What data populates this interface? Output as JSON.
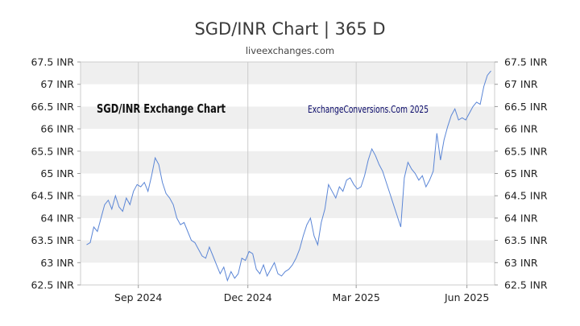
{
  "title": "SGD/INR Chart | 365 D",
  "subtitle": "liveexchanges.com",
  "chart_data": {
    "type": "line",
    "inner_label": "SGD/INR Exchange Chart",
    "watermark": "ExchangeConversions.Com 2025",
    "line_color": "#5b86d6",
    "band_color": "#efefef",
    "grid": true,
    "ylim": [
      62.5,
      67.5
    ],
    "y_ticks": [
      "67.5 INR",
      "67 INR",
      "66.5 INR",
      "66 INR",
      "65.5 INR",
      "65 INR",
      "64.5 INR",
      "64 INR",
      "63.5 INR",
      "63 INR",
      "62.5 INR"
    ],
    "y_tick_values": [
      67.5,
      67,
      66.5,
      66,
      65.5,
      65,
      64.5,
      64,
      63.5,
      63,
      62.5
    ],
    "x_ticks": [
      "Sep 2024",
      "Dec 2024",
      "Mar 2025",
      "Jun 2025"
    ],
    "x_tick_dates": [
      "2024-09-01",
      "2024-12-01",
      "2025-03-01",
      "2025-06-01"
    ],
    "xlim": [
      "2024-07-15",
      "2025-06-24"
    ],
    "series": [
      {
        "x": [
          "2024-07-20",
          "2024-07-23",
          "2024-07-26",
          "2024-07-29",
          "2024-08-01",
          "2024-08-04",
          "2024-08-07",
          "2024-08-10",
          "2024-08-13",
          "2024-08-16",
          "2024-08-19",
          "2024-08-22",
          "2024-08-25",
          "2024-08-28",
          "2024-08-31",
          "2024-09-03",
          "2024-09-06",
          "2024-09-09",
          "2024-09-12",
          "2024-09-15",
          "2024-09-18",
          "2024-09-21",
          "2024-09-24",
          "2024-09-27",
          "2024-09-30",
          "2024-10-03",
          "2024-10-06",
          "2024-10-09",
          "2024-10-12",
          "2024-10-15",
          "2024-10-18",
          "2024-10-21",
          "2024-10-24",
          "2024-10-27",
          "2024-10-30",
          "2024-11-02",
          "2024-11-05",
          "2024-11-08",
          "2024-11-11",
          "2024-11-14",
          "2024-11-17",
          "2024-11-20",
          "2024-11-23",
          "2024-11-26",
          "2024-11-29",
          "2024-12-02",
          "2024-12-05",
          "2024-12-08",
          "2024-12-11",
          "2024-12-14",
          "2024-12-17",
          "2024-12-20",
          "2024-12-23",
          "2024-12-26",
          "2024-12-29",
          "2025-01-01",
          "2025-01-04",
          "2025-01-07",
          "2025-01-10",
          "2025-01-13",
          "2025-01-16",
          "2025-01-19",
          "2025-01-22",
          "2025-01-25",
          "2025-01-28",
          "2025-01-31",
          "2025-02-03",
          "2025-02-06",
          "2025-02-09",
          "2025-02-12",
          "2025-02-15",
          "2025-02-18",
          "2025-02-21",
          "2025-02-24",
          "2025-02-27",
          "2025-03-02",
          "2025-03-05",
          "2025-03-08",
          "2025-03-11",
          "2025-03-14",
          "2025-03-17",
          "2025-03-20",
          "2025-03-23",
          "2025-03-26",
          "2025-03-29",
          "2025-04-01",
          "2025-04-04",
          "2025-04-07",
          "2025-04-10",
          "2025-04-13",
          "2025-04-16",
          "2025-04-19",
          "2025-04-22",
          "2025-04-25",
          "2025-04-28",
          "2025-05-01",
          "2025-05-04",
          "2025-05-07",
          "2025-05-10",
          "2025-05-13",
          "2025-05-16",
          "2025-05-19",
          "2025-05-22",
          "2025-05-25",
          "2025-05-28",
          "2025-05-31",
          "2025-06-03",
          "2025-06-06",
          "2025-06-09",
          "2025-06-12",
          "2025-06-15",
          "2025-06-18",
          "2025-06-21"
        ],
        "values": [
          63.4,
          63.45,
          63.8,
          63.7,
          64.0,
          64.3,
          64.4,
          64.2,
          64.5,
          64.25,
          64.15,
          64.45,
          64.3,
          64.6,
          64.75,
          64.7,
          64.8,
          64.6,
          64.95,
          65.35,
          65.2,
          64.8,
          64.55,
          64.45,
          64.3,
          64.0,
          63.85,
          63.9,
          63.7,
          63.5,
          63.45,
          63.3,
          63.15,
          63.1,
          63.35,
          63.15,
          62.95,
          62.75,
          62.9,
          62.6,
          62.8,
          62.65,
          62.75,
          63.1,
          63.05,
          63.25,
          63.2,
          62.85,
          62.75,
          62.95,
          62.7,
          62.85,
          63.0,
          62.75,
          62.7,
          62.8,
          62.85,
          62.95,
          63.1,
          63.3,
          63.6,
          63.85,
          64.0,
          63.6,
          63.4,
          63.9,
          64.2,
          64.75,
          64.6,
          64.45,
          64.7,
          64.6,
          64.85,
          64.9,
          64.75,
          64.65,
          64.7,
          64.95,
          65.3,
          65.55,
          65.4,
          65.2,
          65.05,
          64.8,
          64.55,
          64.3,
          64.05,
          63.8,
          64.9,
          65.25,
          65.1,
          65.0,
          64.85,
          64.95,
          64.7,
          64.85,
          65.05,
          65.9,
          65.3,
          65.75,
          66.05,
          66.3,
          66.45,
          66.2,
          66.25,
          66.2,
          66.35,
          66.5,
          66.6,
          66.55,
          66.95,
          67.2,
          67.3
        ]
      }
    ]
  }
}
